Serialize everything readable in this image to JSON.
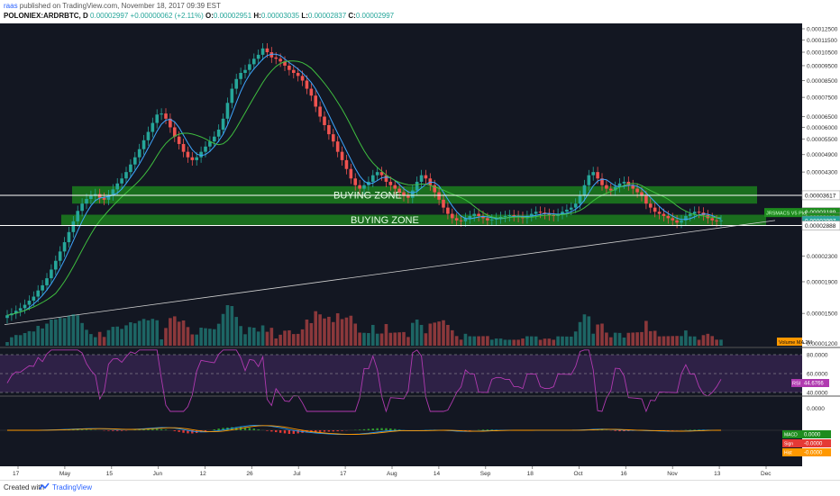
{
  "header": {
    "author": "raas",
    "published_text": "published on TradingView.com, November 18, 2017 09:39 EST",
    "symbol": "POLONIEX:ARDRBTC, D",
    "close": "0.00002997",
    "change": "+0.00000062 (+2.11%)",
    "o_label": "O:",
    "o": "0.00002951",
    "h_label": "H:",
    "h": "0.00003035",
    "l_label": "L:",
    "l": "0.00002837",
    "c_label": "C:",
    "c": "0.00002997"
  },
  "footer": {
    "created": "Created with",
    "brand": "TradingView"
  },
  "colors": {
    "background": "#131722",
    "up": "#26a69a",
    "down": "#ef5350",
    "zone": "#1e8c1e",
    "ma_fast": "#3ea6ff",
    "ma_slow": "#3fbf3f",
    "rsi": "#b03ab0",
    "macd": "#2196f3",
    "signal": "#ff9800"
  },
  "chart_data": {
    "type": "candlestick",
    "symbol": "POLONIEX:ARDRBTC",
    "interval": "D",
    "y_scale": "log",
    "ylim": [
      1.95e-05,
      1.3e-05
    ],
    "price_ticks": [
      "0.00012500",
      "0.00011500",
      "0.00010500",
      "0.00009500",
      "0.00008500",
      "0.00007500",
      "0.00006500",
      "0.00006000",
      "0.00005500",
      "0.00004900",
      "0.00004300",
      "0.00002300",
      "0.00001900",
      "0.00001500",
      "0.00001200"
    ],
    "price_labels": [
      {
        "value": "0.00003617",
        "role": "horizontal-line"
      },
      {
        "value": "0.00003189",
        "role": "ma"
      },
      {
        "value": "0.00003113",
        "role": "ma"
      },
      {
        "value": "0.00002997",
        "role": "last-price"
      },
      {
        "value": "0.00002888",
        "role": "horizontal-line"
      }
    ],
    "x_ticks": [
      "17",
      "May",
      "15",
      "Jun",
      "12",
      "26",
      "Jul",
      "17",
      "Aug",
      "14",
      "Sep",
      "18",
      "Oct",
      "16",
      "Nov",
      "13",
      "Dec"
    ],
    "zones": [
      {
        "label": "BUYING ZONE",
        "from": 3.4e-05,
        "to": 3.87e-05
      },
      {
        "label": "BUYING ZONE",
        "from": 2.9e-05,
        "to": 3.13e-05
      }
    ],
    "closes": [
      1.48e-05,
      1.5e-05,
      1.53e-05,
      1.56e-05,
      1.6e-05,
      1.65e-05,
      1.7e-05,
      1.78e-05,
      1.85e-05,
      1.95e-05,
      2.08e-05,
      2.22e-05,
      2.38e-05,
      2.55e-05,
      2.75e-05,
      2.98e-05,
      3.22e-05,
      3.4e-05,
      3.52e-05,
      3.6e-05,
      3.65e-05,
      3.55e-05,
      3.5e-05,
      3.62e-05,
      3.78e-05,
      3.95e-05,
      4.1e-05,
      4.3e-05,
      4.55e-05,
      4.8e-05,
      5.1e-05,
      5.45e-05,
      5.8e-05,
      6.2e-05,
      6.6e-05,
      6.65e-05,
      6.4e-05,
      6e-05,
      5.6e-05,
      5.3e-05,
      5e-05,
      4.8e-05,
      4.7e-05,
      4.8e-05,
      5e-05,
      5.2e-05,
      5.4e-05,
      5.6e-05,
      5.9e-05,
      6.4e-05,
      7.2e-05,
      8e-05,
      8.6e-05,
      9e-05,
      9.2e-05,
      9.6e-05,
      0.0001,
      0.000103,
      0.000108,
      0.000105,
      0.000101,
      0.0001,
      9.8e-05,
      9.5e-05,
      9.2e-05,
      9e-05,
      8.8e-05,
      8.5e-05,
      8e-05,
      7.6e-05,
      7e-05,
      6.5e-05,
      6.1e-05,
      5.7e-05,
      5.4e-05,
      5e-05,
      4.7e-05,
      4.4e-05,
      4.1e-05,
      3.9e-05,
      3.8e-05,
      3.9e-05,
      4e-05,
      4.2e-05,
      4.3e-05,
      4.2e-05,
      4e-05,
      3.9e-05,
      3.8e-05,
      3.7e-05,
      3.6e-05,
      3.55e-05,
      3.75e-05,
      4e-05,
      4.2e-05,
      4.1e-05,
      3.9e-05,
      3.7e-05,
      3.5e-05,
      3.3e-05,
      3.15e-05,
      3.05e-05,
      3e-05,
      2.98e-05,
      3.05e-05,
      3.1e-05,
      3.15e-05,
      3.1e-05,
      3.05e-05,
      3e-05,
      3.02e-05,
      3.05e-05,
      3.08e-05,
      3.1e-05,
      3.12e-05,
      3.1e-05,
      3.08e-05,
      3.05e-05,
      3.1e-05,
      3.15e-05,
      3.2e-05,
      3.18e-05,
      3.15e-05,
      3.12e-05,
      3.1e-05,
      3.15e-05,
      3.2e-05,
      3.25e-05,
      3.3e-05,
      3.4e-05,
      3.6e-05,
      3.9e-05,
      4.2e-05,
      4.3e-05,
      4.1e-05,
      3.9e-05,
      3.8e-05,
      3.75e-05,
      3.85e-05,
      3.95e-05,
      4e-05,
      3.9e-05,
      3.8e-05,
      3.7e-05,
      3.6e-05,
      3.4e-05,
      3.3e-05,
      3.2e-05,
      3.15e-05,
      3.1e-05,
      3.05e-05,
      3e-05,
      2.95e-05,
      3e-05,
      3.1e-05,
      3.15e-05,
      3.2e-05,
      3.18e-05,
      3.12e-05,
      3.05e-05,
      3e-05,
      2.98e-05,
      3e-05
    ],
    "rsi_level_labels": [
      "80.0000",
      "60.0000",
      "40.0000"
    ],
    "macd_zero_label": "0.0000",
    "indicator_labels": [
      {
        "label": "Volume MA",
        "value": "2M"
      },
      {
        "label": "RSI",
        "value": "44.6766"
      },
      {
        "label": "MACD",
        "value": "0.0000"
      },
      {
        "label": "Signal",
        "value": "-0.0000"
      },
      {
        "label": "Histogram",
        "value": "-0.0000"
      }
    ],
    "ma_legend": "JRSMACS V5 Plot"
  }
}
